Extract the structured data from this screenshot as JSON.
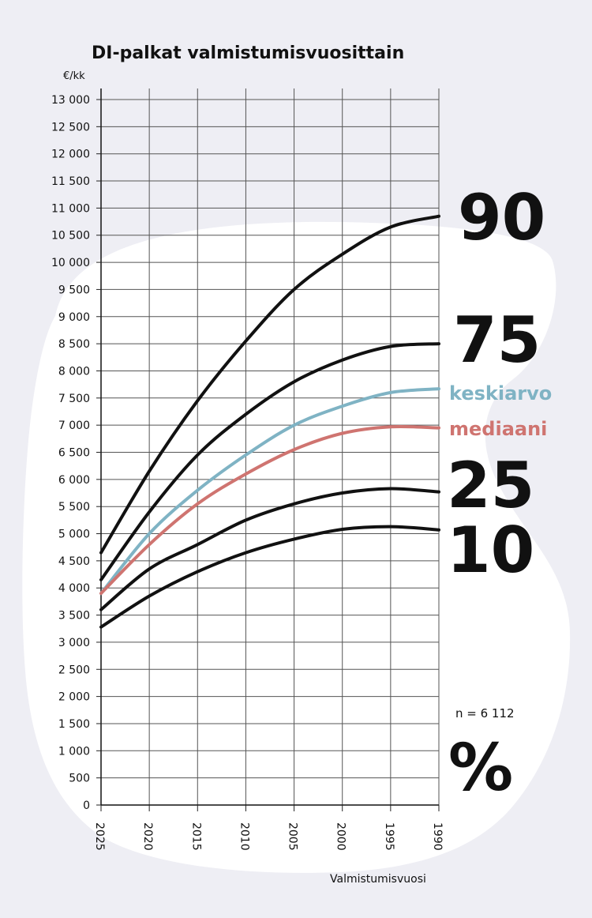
{
  "chart_data": {
    "type": "line",
    "title": "DI-palkat valmistumisvuosittain",
    "ylabel": "€/kk",
    "xlabel": "Valmistumisvuosi",
    "x": [
      2025,
      2020,
      2015,
      2010,
      2005,
      2000,
      1995,
      1990
    ],
    "x_ticks": [
      "2025",
      "2020",
      "2015",
      "2010",
      "2005",
      "2000",
      "1995",
      "1990"
    ],
    "xlim": [
      2025,
      1990
    ],
    "ylim": [
      0,
      13000
    ],
    "y_ticks": [
      "0",
      "500",
      "1 000",
      "1 500",
      "2 000",
      "2 500",
      "3 000",
      "3 500",
      "4 000",
      "4 500",
      "5 000",
      "5 500",
      "6 000",
      "6 500",
      "7 000",
      "7 500",
      "8 000",
      "8 500",
      "9 000",
      "9 500",
      "10 000",
      "10 500",
      "11 000",
      "11 500",
      "12 000",
      "12 500",
      "13 000"
    ],
    "grid": true,
    "series": [
      {
        "name": "90",
        "color": "#111111",
        "values": [
          4650,
          6150,
          7450,
          8550,
          9500,
          10150,
          10650,
          10850
        ]
      },
      {
        "name": "75",
        "color": "#111111",
        "values": [
          4150,
          5400,
          6450,
          7200,
          7800,
          8200,
          8450,
          8500
        ]
      },
      {
        "name": "keskiarvo",
        "color": "#7fb3c4",
        "values": [
          3900,
          5000,
          5800,
          6450,
          7000,
          7350,
          7600,
          7670
        ]
      },
      {
        "name": "mediaani",
        "color": "#cf7470",
        "values": [
          3900,
          4800,
          5550,
          6100,
          6550,
          6850,
          6970,
          6950
        ]
      },
      {
        "name": "25",
        "color": "#111111",
        "values": [
          3600,
          4350,
          4800,
          5250,
          5550,
          5750,
          5830,
          5770
        ]
      },
      {
        "name": "10",
        "color": "#111111",
        "values": [
          3280,
          3850,
          4300,
          4650,
          4900,
          5080,
          5130,
          5070
        ]
      }
    ],
    "annotations": {
      "n": "n = 6 112",
      "unit_symbol": "%"
    }
  }
}
